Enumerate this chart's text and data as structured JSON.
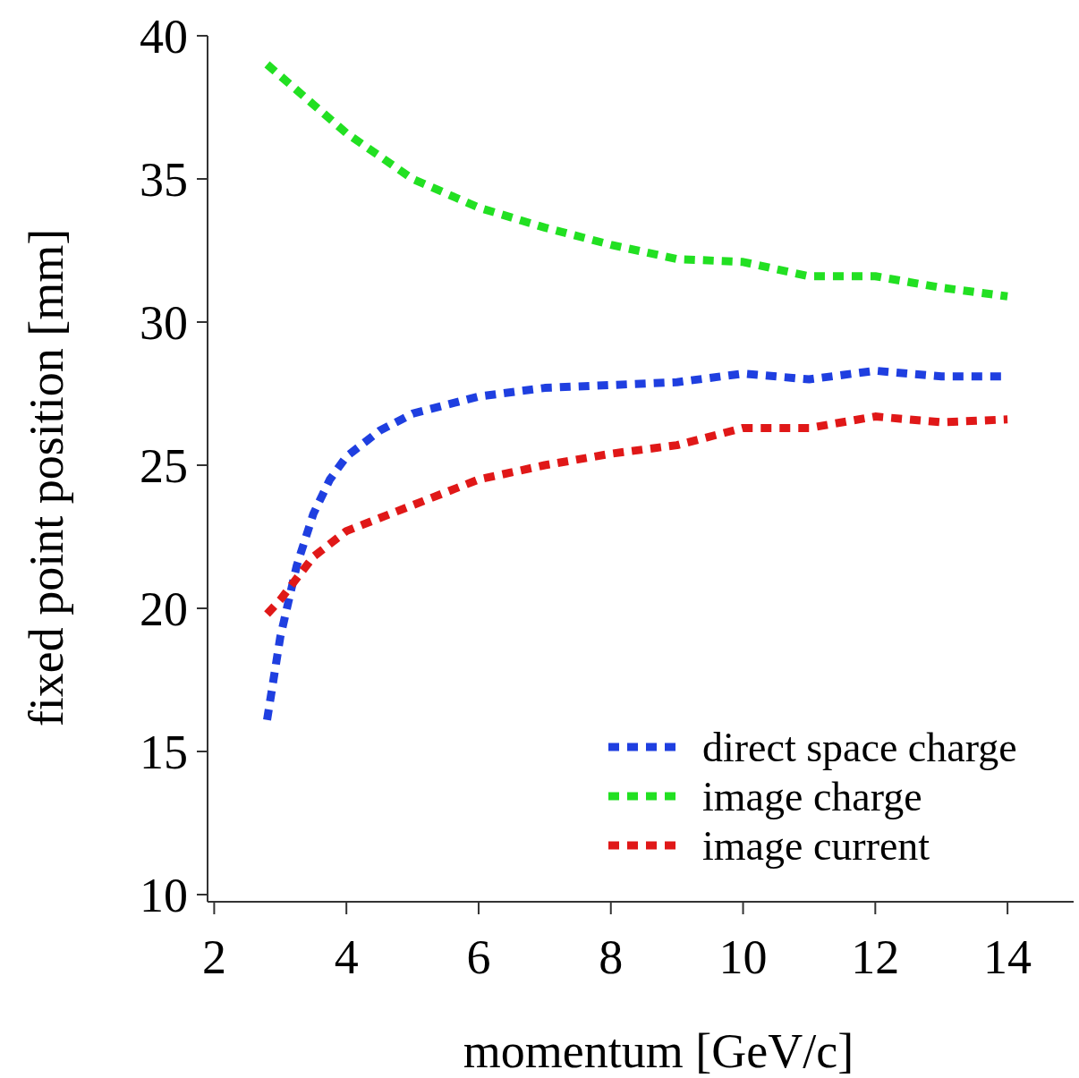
{
  "chart_data": {
    "type": "line",
    "xlabel": "momentum [GeV/c]",
    "ylabel": "fixed point position [mm]",
    "xlim": [
      1.9,
      15
    ],
    "ylim": [
      9.75,
      40
    ],
    "xticks": [
      2,
      4,
      6,
      8,
      10,
      12,
      14
    ],
    "yticks": [
      10,
      15,
      20,
      25,
      30,
      35,
      40
    ],
    "grid": false,
    "legend": "bottom right",
    "line_style": "dashed",
    "series": [
      {
        "name": "direct space charge",
        "color": "#1f3fe0",
        "x": [
          2.8,
          3,
          3.25,
          3.5,
          3.75,
          4,
          4.5,
          5,
          6,
          7,
          8,
          9,
          10,
          11,
          12,
          13,
          14
        ],
        "values": [
          16.1,
          19.0,
          21.5,
          23.3,
          24.5,
          25.3,
          26.2,
          26.8,
          27.4,
          27.7,
          27.8,
          27.9,
          28.2,
          28.0,
          28.3,
          28.1,
          28.1
        ]
      },
      {
        "name": "image charge",
        "color": "#22e022",
        "x": [
          2.8,
          3,
          3.5,
          4,
          4.5,
          5,
          6,
          7,
          8,
          9,
          10,
          11,
          12,
          13,
          14
        ],
        "values": [
          39.0,
          38.6,
          37.6,
          36.6,
          35.8,
          35.0,
          34.0,
          33.3,
          32.7,
          32.2,
          32.1,
          31.6,
          31.6,
          31.2,
          30.9
        ]
      },
      {
        "name": "image current",
        "color": "#e01818",
        "x": [
          2.8,
          3,
          3.5,
          4,
          5,
          6,
          7,
          8,
          9,
          10,
          11,
          12,
          13,
          14
        ],
        "values": [
          19.8,
          20.3,
          21.8,
          22.7,
          23.6,
          24.5,
          25.0,
          25.4,
          25.7,
          26.3,
          26.3,
          26.7,
          26.5,
          26.6
        ]
      }
    ]
  }
}
